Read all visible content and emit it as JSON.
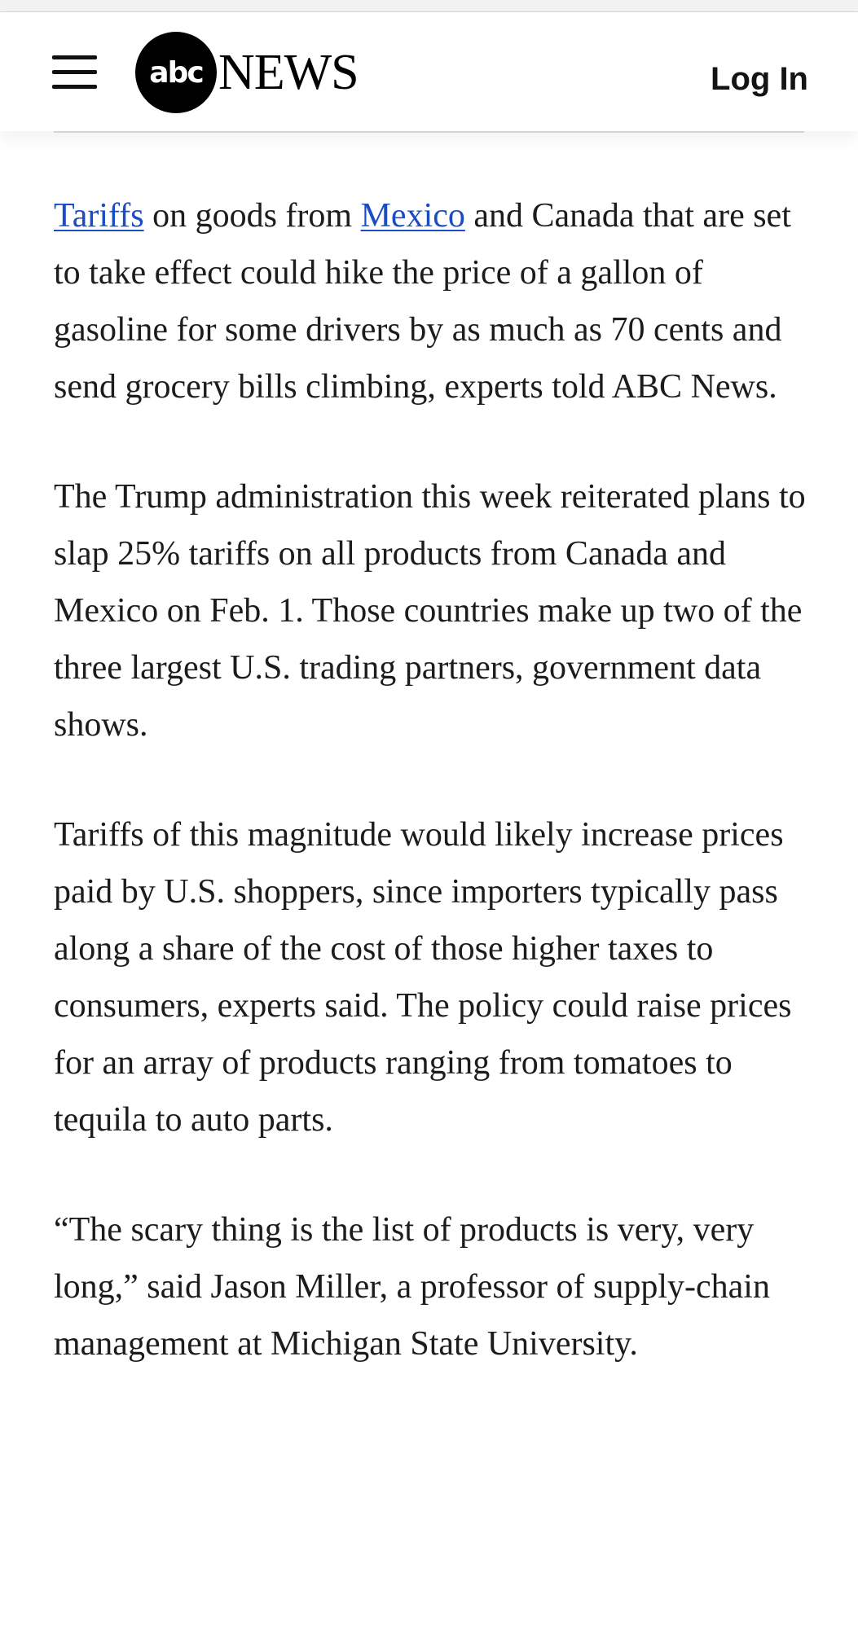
{
  "header": {
    "menu_icon": "hamburger-menu-icon",
    "logo": {
      "circle_text": "abc",
      "word_text": "NEWS"
    },
    "login_label": "Log In"
  },
  "article": {
    "paragraph_1": {
      "link_tariffs": "Tariffs",
      "text_1": " on goods from ",
      "link_mexico": "Mexico",
      "text_2": " and Canada that are set to take effect could hike the price of a gallon of gasoline for some drivers by as much as 70 cents and send grocery bills climbing, experts told ABC News."
    },
    "paragraph_2": "The Trump administration this week reiterated plans to slap 25% tariffs on all products from Canada and Mexico on Feb. 1. Those countries make up two of the three largest U.S. trading partners, government data shows.",
    "paragraph_3": "Tariffs of this magnitude would likely increase prices paid by U.S. shoppers, since importers typically pass along a share of the cost of those higher taxes to consumers, experts said. The policy could raise prices for an array of products ranging from tomatoes to tequila to auto parts.",
    "paragraph_4": "“The scary thing is the list of products is very, very long,” said Jason Miller, a professor of supply-chain management at Michigan State University."
  },
  "colors": {
    "link": "#1a4cc4",
    "text": "#1c1c1c",
    "logo": "#000000"
  }
}
